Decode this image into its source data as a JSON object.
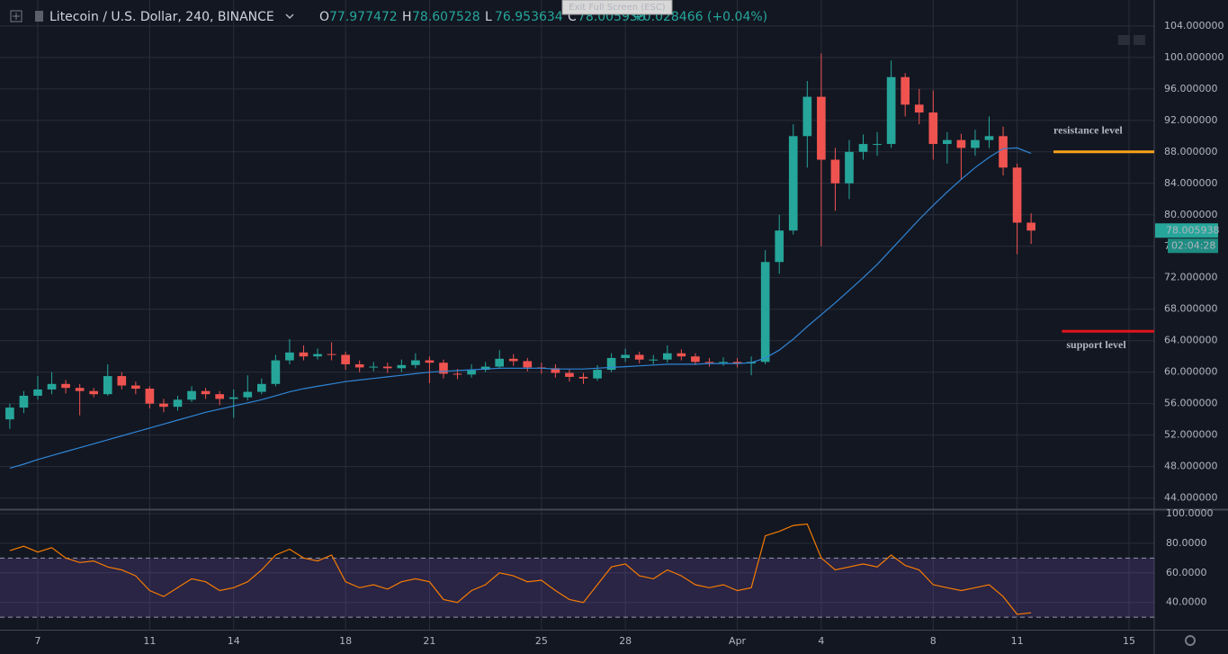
{
  "header": {
    "symbol": "Litecoin / U.S. Dollar, 240, BINANCE",
    "ohlc": [
      {
        "key": "O",
        "value": "77.977472"
      },
      {
        "key": "H",
        "value": "78.607528"
      },
      {
        "key": "L",
        "value": "76.953634"
      },
      {
        "key": "C",
        "value": "78.005938"
      }
    ],
    "change": "+0.028466 (+0.04%)"
  },
  "tooltip": "Exit Full Screen (ESC)",
  "price_label": "78.005938",
  "countdown": "02:04:28",
  "chart_data": [
    {
      "type": "candlestick",
      "x": [
        6,
        6.5,
        7,
        7.5,
        8,
        8.5,
        9,
        9.5,
        10,
        10.5,
        11,
        11.5,
        12,
        12.5,
        13,
        13.5,
        14,
        14.5,
        15,
        15.5,
        16,
        16.5,
        17,
        17.5,
        18,
        18.5,
        19,
        19.5,
        20,
        20.5,
        21,
        21.5,
        22,
        22.5,
        23,
        23.5,
        24,
        24.5,
        25,
        25.5,
        26,
        26.5,
        27,
        27.5,
        28,
        28.5,
        29,
        29.5,
        30,
        30.5,
        31,
        31.5,
        32,
        32.5,
        33,
        33.5,
        34,
        34.5,
        35,
        35.5,
        36,
        36.5,
        37,
        37.5,
        38,
        38.5,
        39,
        39.5,
        40,
        40.5,
        41,
        41.5,
        42,
        42.5
      ],
      "open": [
        54,
        55.5,
        57,
        57.8,
        58.5,
        58,
        57.6,
        57.2,
        59.5,
        58.3,
        57.9,
        56,
        55.6,
        56.5,
        57.6,
        57.2,
        56.6,
        56.8,
        57.5,
        58.5,
        61.5,
        62.5,
        62,
        62.3,
        62.2,
        61,
        60.6,
        60.7,
        60.5,
        60.9,
        61.5,
        61.2,
        59.8,
        59.7,
        60.3,
        60.7,
        61.7,
        61.4,
        60.6,
        60.5,
        59.9,
        59.4,
        59.2,
        60.3,
        61.8,
        62.2,
        61.6,
        61.6,
        62.4,
        62,
        61.3,
        61.2,
        61.3,
        61.1,
        61.3,
        74,
        78,
        90,
        95,
        87,
        84,
        88,
        89,
        89,
        97.5,
        94,
        93,
        89,
        89.5,
        88.5,
        89.5,
        90,
        86,
        79
      ],
      "high": [
        56,
        57.6,
        59.5,
        60,
        59,
        58.5,
        58,
        61,
        60,
        58.8,
        58.2,
        56.6,
        57,
        58.2,
        58,
        57.6,
        57.8,
        59.6,
        59.2,
        62.2,
        64.2,
        63.4,
        63,
        63.8,
        62.6,
        61.5,
        61.3,
        61.2,
        61.6,
        62.4,
        62,
        61.6,
        60.4,
        61,
        61.3,
        62.8,
        62.3,
        61.8,
        61.2,
        61,
        60.3,
        59.9,
        60.9,
        62.4,
        63,
        62.6,
        62.2,
        63.4,
        62.9,
        62.4,
        61.8,
        61.9,
        61.8,
        62,
        75.5,
        80,
        91.5,
        97,
        100.5,
        88.5,
        89.5,
        90.2,
        90.5,
        99.6,
        98,
        96,
        95.8,
        90.5,
        90.3,
        90.8,
        92.5,
        91.2,
        86.5,
        80.2
      ],
      "low": [
        52.8,
        54.8,
        56.5,
        57.2,
        57.3,
        54.5,
        56.8,
        57,
        57.8,
        57.2,
        55.4,
        54.9,
        55.1,
        56.2,
        56.6,
        55.8,
        54.2,
        56.4,
        57.2,
        58.2,
        61,
        61.5,
        61.6,
        61.5,
        60.3,
        60,
        60.1,
        59.9,
        60,
        60.5,
        58.6,
        59.2,
        59.1,
        59.3,
        60,
        60.4,
        60.8,
        60.1,
        59.8,
        59.3,
        58.8,
        58.5,
        58.9,
        60,
        61.3,
        61.1,
        61,
        61.2,
        61.5,
        60.9,
        60.7,
        60.8,
        60.6,
        59.6,
        61,
        72.5,
        77.5,
        86,
        76,
        80.5,
        82,
        87,
        87.5,
        88.5,
        92.5,
        91.5,
        87,
        86.5,
        84.5,
        87.5,
        88.5,
        85,
        75,
        76.3
      ],
      "close": [
        55.5,
        57,
        57.8,
        58.5,
        58,
        57.6,
        57.2,
        59.5,
        58.3,
        57.9,
        56,
        55.6,
        56.5,
        57.6,
        57.2,
        56.6,
        56.8,
        57.5,
        58.5,
        61.5,
        62.5,
        62,
        62.3,
        62.2,
        61,
        60.6,
        60.7,
        60.5,
        60.9,
        61.5,
        61.2,
        59.8,
        59.7,
        60.3,
        60.7,
        61.7,
        61.4,
        60.6,
        60.5,
        59.9,
        59.4,
        59.2,
        60.3,
        61.8,
        62.2,
        61.6,
        61.6,
        62.4,
        62,
        61.3,
        61.2,
        61.3,
        61.1,
        61.3,
        74,
        78,
        90,
        95,
        87,
        84,
        88,
        89,
        89,
        97.5,
        94,
        93,
        89,
        89.5,
        88.5,
        89.5,
        90,
        86,
        79,
        78
      ],
      "up_color": "#26a69a",
      "down_color": "#ef5350",
      "moving_average": {
        "color": "#2f86d6",
        "values": [
          47.8,
          48.3,
          48.9,
          49.4,
          49.9,
          50.4,
          50.9,
          51.4,
          51.9,
          52.4,
          52.9,
          53.4,
          53.9,
          54.4,
          54.9,
          55.3,
          55.7,
          56.1,
          56.5,
          57,
          57.5,
          57.9,
          58.2,
          58.5,
          58.8,
          59,
          59.2,
          59.4,
          59.6,
          59.8,
          60,
          60.1,
          60.2,
          60.3,
          60.4,
          60.5,
          60.5,
          60.5,
          60.5,
          60.4,
          60.4,
          60.4,
          60.5,
          60.6,
          60.7,
          60.8,
          60.9,
          61,
          61,
          61,
          61.1,
          61.1,
          61.1,
          61.2,
          61.8,
          62.8,
          64.2,
          65.8,
          67.3,
          68.8,
          70.4,
          72,
          73.7,
          75.6,
          77.5,
          79.4,
          81.2,
          82.9,
          84.5,
          86,
          87.3,
          88.4,
          88.5,
          87.8
        ]
      },
      "xlim": [
        5.65,
        46.9
      ],
      "xticks": [
        7,
        11,
        14,
        18,
        21,
        25,
        28,
        {
          "value": 32,
          "label": "Apr"
        },
        {
          "value": 35,
          "label": "4"
        },
        {
          "value": 39,
          "label": "8"
        },
        {
          "value": 42,
          "label": "11"
        },
        {
          "value": 46,
          "label": "15"
        }
      ],
      "ylim": [
        42.7,
        107.3
      ],
      "yticks": [
        {
          "value": 104,
          "label": "104.000000"
        },
        {
          "value": 100,
          "label": "100.000000"
        },
        {
          "value": 96,
          "label": "96.000000"
        },
        {
          "value": 92,
          "label": "92.000000"
        },
        {
          "value": 88,
          "label": "88.000000"
        },
        {
          "value": 84,
          "label": "84.000000"
        },
        {
          "value": 80,
          "label": "80.000000"
        },
        {
          "value": 76,
          "label": "76.000000"
        },
        {
          "value": 72,
          "label": "72.000000"
        },
        {
          "value": 68,
          "label": "68.000000"
        },
        {
          "value": 64,
          "label": "64.000000"
        },
        {
          "value": 60,
          "label": "60.000000"
        },
        {
          "value": 56,
          "label": "56.000000"
        },
        {
          "value": 52,
          "label": "52.000000"
        },
        {
          "value": 48,
          "label": "48.000000"
        },
        {
          "value": 44,
          "label": "44.000000"
        }
      ],
      "grid": true,
      "annotations": [
        {
          "text": "resistance level",
          "y": 88,
          "x": [
            43.3,
            46.9
          ],
          "color": "#f7a21b"
        },
        {
          "text": "support level",
          "y": 65.2,
          "x": [
            43.6,
            46.9
          ],
          "color": "#e0141e"
        }
      ]
    },
    {
      "type": "line",
      "series": [
        {
          "color": "#f57c00",
          "values": [
            75,
            78,
            74,
            77,
            70,
            67,
            68,
            64,
            62,
            58,
            48,
            44,
            50,
            56,
            54,
            48,
            50,
            54,
            62,
            72,
            76,
            70,
            68,
            72,
            54,
            50,
            52,
            49,
            54,
            56,
            54,
            42,
            40,
            48,
            52,
            60,
            58,
            54,
            55,
            48,
            42,
            40,
            52,
            64,
            66,
            58,
            56,
            62,
            58,
            52,
            50,
            52,
            48,
            50,
            85,
            88,
            92,
            93,
            70,
            62,
            64,
            66,
            64,
            72,
            65,
            62,
            52,
            50,
            48,
            50,
            52,
            44,
            32,
            33
          ]
        }
      ],
      "ylim": [
        21.6,
        102.4
      ],
      "yticks": [
        {
          "value": 100,
          "label": "100.0000"
        },
        {
          "value": 80,
          "label": "80.0000"
        },
        {
          "value": 60,
          "label": "60.0000"
        },
        {
          "value": 40,
          "label": "40.0000"
        }
      ],
      "bands": [
        30,
        70
      ],
      "band_color": "#7e57c2",
      "grid": true
    }
  ]
}
